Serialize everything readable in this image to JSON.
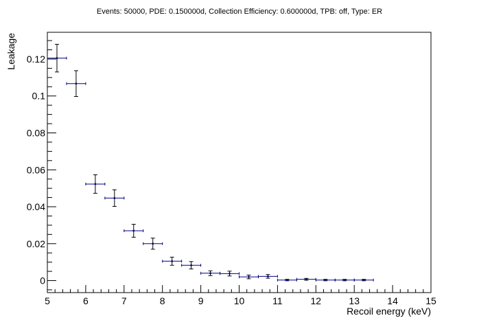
{
  "chart_data": {
    "type": "scatter",
    "title": "Events: 50000, PDE: 0.150000d, Collection Efficiency: 0.600000d, TPB: off, Type: ER",
    "xlabel": "Recoil energy (keV)",
    "ylabel": "Leakage",
    "xlim": [
      5,
      15
    ],
    "ylim": [
      -0.0065,
      0.1345
    ],
    "xticks": [
      5,
      6,
      7,
      8,
      9,
      10,
      11,
      12,
      13,
      14,
      15
    ],
    "xtick_labels": [
      "5",
      "6",
      "7",
      "8",
      "9",
      "10",
      "11",
      "12",
      "13",
      "14",
      "15"
    ],
    "yticks": [
      0,
      0.02,
      0.04,
      0.06,
      0.08,
      0.1,
      0.12
    ],
    "ytick_labels": [
      "0",
      "0.02",
      "0.04",
      "0.06",
      "0.08",
      "0.1",
      "0.12"
    ],
    "grid": false,
    "series": [
      {
        "color": "#000080",
        "x": [
          5.25,
          5.75,
          6.25,
          6.75,
          7.25,
          7.75,
          8.25,
          8.75,
          9.25,
          9.75,
          10.25,
          10.75,
          11.25,
          11.75,
          12.25,
          12.75,
          13.25
        ],
        "xerr": [
          0.25,
          0.25,
          0.25,
          0.25,
          0.25,
          0.25,
          0.25,
          0.25,
          0.25,
          0.25,
          0.25,
          0.25,
          0.25,
          0.25,
          0.25,
          0.25,
          0.25
        ],
        "y": [
          0.1205,
          0.1067,
          0.0523,
          0.0447,
          0.027,
          0.02,
          0.0105,
          0.0083,
          0.004,
          0.0038,
          0.002,
          0.0023,
          0.0003,
          0.0007,
          0.0003,
          0.0003,
          0.0003
        ],
        "yerr": [
          0.0075,
          0.007,
          0.005,
          0.0045,
          0.0035,
          0.003,
          0.0022,
          0.002,
          0.0013,
          0.0013,
          0.001,
          0.001,
          0.0004,
          0.0005,
          0.0004,
          0.0004,
          0.0004
        ]
      }
    ]
  }
}
